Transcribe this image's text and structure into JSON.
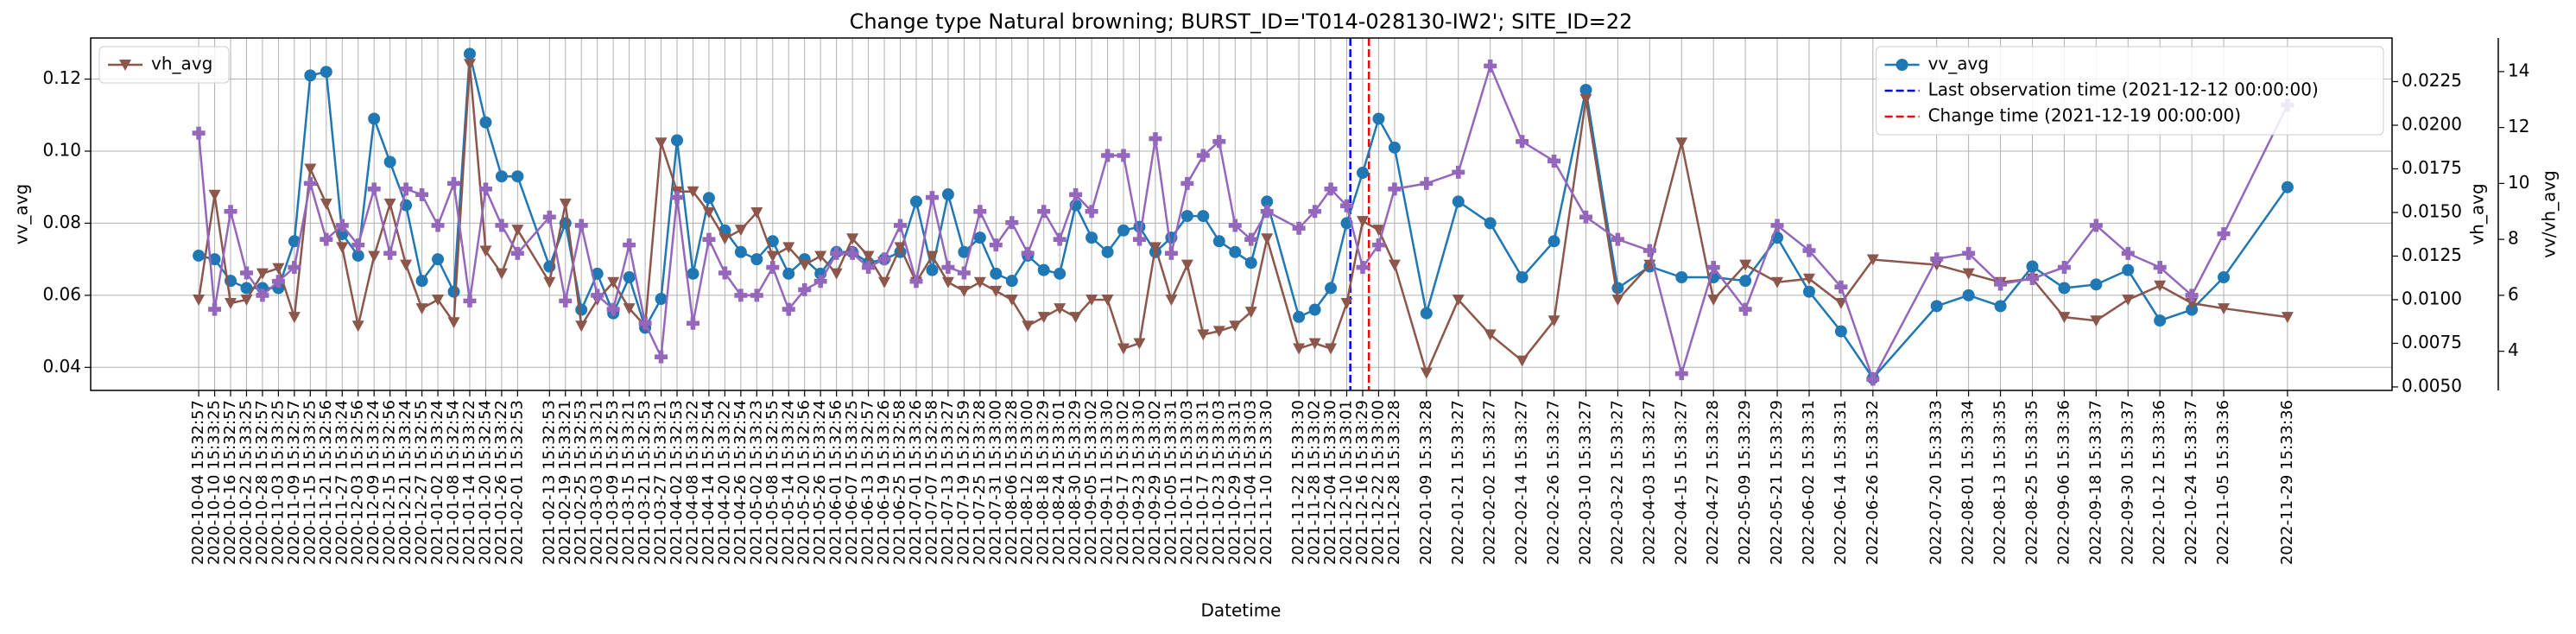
{
  "chart_data": {
    "type": "line",
    "title": "Change type Natural browning; BURST_ID='T014-028130-IW2'; SITE_ID=22",
    "xlabel": "Datetime",
    "ylabel": "vv_avg",
    "y2label": "vh_avg",
    "y3label": "vv/vh_avg",
    "grid": true,
    "x": [
      "2020-10-04 15:32:57",
      "2020-10-10 15:33:25",
      "2020-10-16 15:32:57",
      "2020-10-22 15:33:25",
      "2020-10-28 15:32:57",
      "2020-11-03 15:33:25",
      "2020-11-09 15:32:57",
      "2020-11-15 15:33:25",
      "2020-11-21 15:32:56",
      "2020-11-27 15:33:24",
      "2020-12-03 15:32:56",
      "2020-12-09 15:33:24",
      "2020-12-15 15:32:56",
      "2020-12-21 15:33:24",
      "2020-12-27 15:32:55",
      "2021-01-02 15:33:24",
      "2021-01-08 15:32:54",
      "2021-01-14 15:33:22",
      "2021-01-20 15:32:54",
      "2021-01-26 15:33:22",
      "2021-02-01 15:32:53",
      "2021-02-13 15:32:53",
      "2021-02-19 15:33:21",
      "2021-02-25 15:32:53",
      "2021-03-03 15:33:21",
      "2021-03-09 15:32:53",
      "2021-03-15 15:33:21",
      "2021-03-21 15:32:53",
      "2021-03-27 15:33:21",
      "2021-04-02 15:32:53",
      "2021-04-08 15:33:22",
      "2021-04-14 15:32:54",
      "2021-04-20 15:33:22",
      "2021-04-26 15:32:54",
      "2021-05-02 15:33:23",
      "2021-05-08 15:32:55",
      "2021-05-14 15:33:24",
      "2021-05-20 15:32:56",
      "2021-05-26 15:33:24",
      "2021-06-01 15:32:56",
      "2021-06-07 15:33:25",
      "2021-06-13 15:32:57",
      "2021-06-19 15:33:26",
      "2021-06-25 15:32:58",
      "2021-07-01 15:33:26",
      "2021-07-07 15:32:58",
      "2021-07-13 15:33:27",
      "2021-07-19 15:32:59",
      "2021-07-25 15:33:28",
      "2021-07-31 15:33:00",
      "2021-08-06 15:33:28",
      "2021-08-12 15:33:00",
      "2021-08-18 15:33:29",
      "2021-08-24 15:33:01",
      "2021-08-30 15:33:29",
      "2021-09-05 15:33:02",
      "2021-09-11 15:33:30",
      "2021-09-17 15:33:02",
      "2021-09-23 15:33:30",
      "2021-09-29 15:33:02",
      "2021-10-05 15:33:31",
      "2021-10-11 15:33:03",
      "2021-10-17 15:33:31",
      "2021-10-23 15:33:03",
      "2021-10-29 15:33:31",
      "2021-11-04 15:33:03",
      "2021-11-10 15:33:30",
      "2021-11-22 15:33:30",
      "2021-11-28 15:33:02",
      "2021-12-04 15:33:30",
      "2021-12-10 15:33:01",
      "2021-12-16 15:33:29",
      "2021-12-22 15:33:00",
      "2021-12-28 15:33:28",
      "2022-01-09 15:33:28",
      "2022-01-21 15:33:27",
      "2022-02-02 15:33:27",
      "2022-02-14 15:33:27",
      "2022-02-26 15:33:27",
      "2022-03-10 15:33:27",
      "2022-03-22 15:33:27",
      "2022-04-03 15:33:27",
      "2022-04-15 15:33:27",
      "2022-04-27 15:33:28",
      "2022-05-09 15:33:29",
      "2022-05-21 15:33:29",
      "2022-06-02 15:33:31",
      "2022-06-14 15:33:31",
      "2022-06-26 15:33:32",
      "2022-07-20 15:33:33",
      "2022-08-01 15:33:34",
      "2022-08-13 15:33:35",
      "2022-08-25 15:33:35",
      "2022-09-06 15:33:36",
      "2022-09-18 15:33:37",
      "2022-09-30 15:33:37",
      "2022-10-12 15:33:36",
      "2022-10-24 15:33:37",
      "2022-11-05 15:33:36",
      "2022-11-29 15:33:36"
    ],
    "xlim": [
      "2020-08-25 00:00:00",
      "2023-01-08 00:00:00"
    ],
    "ylim": [
      0.0336,
      0.1314
    ],
    "yticks": [
      0.04,
      0.06,
      0.08,
      {
        "value": 0.1,
        "label": "0.10"
      },
      0.12
    ],
    "y2lim": [
      0.0048,
      0.025
    ],
    "y2ticks": [
      {
        "value": 0.005,
        "label": "0.0050"
      },
      0.0075,
      {
        "value": 0.01,
        "label": "0.0100"
      },
      0.0125,
      {
        "value": 0.015,
        "label": "0.0150"
      },
      0.0175,
      {
        "value": 0.02,
        "label": "0.0200"
      },
      0.0225
    ],
    "y3lim": [
      2.6,
      15.2
    ],
    "y3ticks": [
      4,
      6,
      8,
      10,
      12,
      14
    ],
    "series": [
      {
        "name": "vv_avg",
        "color": "#1f77b4",
        "axis": "y",
        "marker": "o",
        "legend": "upper right",
        "values": [
          0.071,
          0.07,
          0.064,
          0.062,
          0.062,
          0.062,
          0.075,
          0.121,
          0.122,
          0.077,
          0.071,
          0.109,
          0.097,
          0.085,
          0.064,
          0.07,
          0.061,
          0.127,
          0.108,
          0.093,
          0.093,
          0.068,
          0.08,
          0.056,
          0.066,
          0.055,
          0.065,
          0.051,
          0.059,
          0.103,
          0.066,
          0.087,
          0.078,
          0.072,
          0.07,
          0.075,
          0.066,
          0.07,
          0.066,
          0.072,
          0.072,
          0.069,
          0.07,
          0.072,
          0.086,
          0.067,
          0.088,
          0.072,
          0.076,
          0.066,
          0.064,
          0.071,
          0.067,
          0.066,
          0.085,
          0.076,
          0.072,
          0.078,
          0.079,
          0.072,
          0.076,
          0.082,
          0.082,
          0.075,
          0.072,
          0.069,
          0.086,
          0.054,
          0.056,
          0.062,
          0.08,
          0.094,
          0.109,
          0.101,
          0.055,
          0.086,
          0.08,
          0.065,
          0.075,
          0.117,
          0.062,
          0.068,
          0.065,
          0.065,
          0.064,
          0.076,
          0.061,
          0.05,
          0.037,
          0.057,
          0.06,
          0.057,
          0.068,
          0.062,
          0.063,
          0.067,
          0.053,
          0.056,
          0.065,
          0.09
        ]
      },
      {
        "name": "vh_avg",
        "color": "#8c564b",
        "axis": "y2",
        "marker": "v",
        "legend": "upper left",
        "values": [
          0.01,
          0.016,
          0.0098,
          0.01,
          0.0115,
          0.0118,
          0.009,
          0.0175,
          0.0155,
          0.013,
          0.0085,
          0.0125,
          0.0155,
          0.012,
          0.0095,
          0.01,
          0.0087,
          0.0235,
          0.0128,
          0.0115,
          0.014,
          0.011,
          0.0155,
          0.0085,
          0.01,
          0.011,
          0.0095,
          0.0085,
          0.019,
          0.0162,
          0.0162,
          0.015,
          0.0135,
          0.014,
          0.015,
          0.0125,
          0.013,
          0.012,
          0.0125,
          0.0115,
          0.0135,
          0.0125,
          0.011,
          0.013,
          0.011,
          0.0125,
          0.011,
          0.0105,
          0.011,
          0.0105,
          0.01,
          0.0085,
          0.009,
          0.0095,
          0.009,
          0.01,
          0.01,
          0.0072,
          0.0075,
          0.013,
          0.01,
          0.012,
          0.008,
          0.0082,
          0.0085,
          0.0093,
          0.0135,
          0.0072,
          0.0075,
          0.0072,
          0.0098,
          0.0145,
          0.014,
          0.012,
          0.0058,
          0.01,
          0.008,
          0.0065,
          0.0088,
          0.0215,
          0.01,
          0.012,
          0.019,
          0.01,
          0.012,
          0.011,
          0.0112,
          0.0098,
          0.0123,
          0.012,
          0.0115,
          0.011,
          0.0112,
          0.009,
          0.0088,
          0.01,
          0.0108,
          0.0098,
          0.0095,
          0.009
        ]
      },
      {
        "name": "vv/vh_avg",
        "color": "#9467bd",
        "axis": "y3",
        "marker": "P",
        "values": [
          11.8,
          5.5,
          9.0,
          6.8,
          6.0,
          6.5,
          7.0,
          10.0,
          8.0,
          8.5,
          7.8,
          9.8,
          7.5,
          9.8,
          9.6,
          8.5,
          10.0,
          5.8,
          9.8,
          8.5,
          7.5,
          8.8,
          5.8,
          8.5,
          6.0,
          5.5,
          7.8,
          5.0,
          3.8,
          9.5,
          5.0,
          8.0,
          6.8,
          6.0,
          6.0,
          7.0,
          5.5,
          6.2,
          6.5,
          7.5,
          7.5,
          7.0,
          7.3,
          8.5,
          6.5,
          9.5,
          7.0,
          6.8,
          9.0,
          7.8,
          8.6,
          7.5,
          9.0,
          8.0,
          9.6,
          9.0,
          11.0,
          11.0,
          8.0,
          11.6,
          7.5,
          10.0,
          11.0,
          11.5,
          8.5,
          8.0,
          9.0,
          8.4,
          9.0,
          9.8,
          9.2,
          7.0,
          7.8,
          9.8,
          10.0,
          10.4,
          14.2,
          11.5,
          10.8,
          8.8,
          8.0,
          7.6,
          3.2,
          7.0,
          5.5,
          8.5,
          7.6,
          6.3,
          3.0,
          7.3,
          7.5,
          6.4,
          6.6,
          7.0,
          8.5,
          7.5,
          7.0,
          6.0,
          8.2,
          12.8
        ]
      }
    ],
    "vlines": [
      {
        "label": "Last observation time (2021-12-12 00:00:00)",
        "x": "2021-12-12 00:00:00",
        "color": "#0000ff",
        "legend": "upper right"
      },
      {
        "label": "Change time (2021-12-19 00:00:00)",
        "x": "2021-12-19 00:00:00",
        "color": "#ff0000",
        "legend": "upper right"
      }
    ]
  }
}
